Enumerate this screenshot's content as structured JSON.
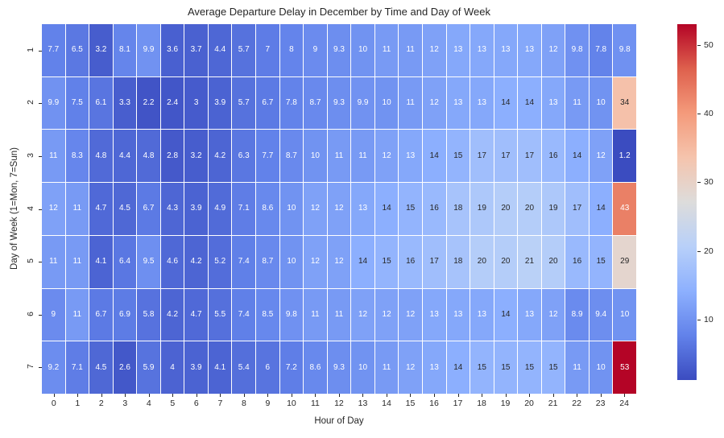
{
  "chart_data": {
    "type": "heatmap",
    "title": "Average Departure Delay in December by Time and Day of Week",
    "xlabel": "Hour of Day",
    "ylabel": "Day of Week (1=Mon, 7=Sun)",
    "x_ticks": [
      "0",
      "1",
      "2",
      "3",
      "4",
      "5",
      "6",
      "7",
      "8",
      "9",
      "10",
      "11",
      "12",
      "13",
      "14",
      "15",
      "16",
      "17",
      "18",
      "19",
      "20",
      "21",
      "22",
      "23",
      "24"
    ],
    "y_ticks": [
      "1",
      "2",
      "3",
      "4",
      "5",
      "6",
      "7"
    ],
    "rows": [
      {
        "day": "1",
        "values": [
          7.7,
          6.5,
          3.2,
          8.1,
          9.9,
          3.6,
          3.7,
          4.4,
          5.7,
          7,
          8,
          9,
          9.3,
          10,
          11,
          11,
          12,
          13,
          13,
          13,
          13,
          12,
          9.8,
          7.8,
          9.8
        ]
      },
      {
        "day": "2",
        "values": [
          9.9,
          7.5,
          6.1,
          3.3,
          2.2,
          2.4,
          3,
          3.9,
          5.7,
          6.7,
          7.8,
          8.7,
          9.3,
          9.9,
          10,
          11,
          12,
          13,
          13,
          14,
          14,
          13,
          11,
          10,
          34
        ]
      },
      {
        "day": "3",
        "values": [
          11,
          8.3,
          4.8,
          4.4,
          4.8,
          2.8,
          3.2,
          4.2,
          6.3,
          7.7,
          8.7,
          10,
          11,
          11,
          12,
          13,
          14,
          15,
          17,
          17,
          17,
          16,
          14,
          12,
          1.2
        ]
      },
      {
        "day": "4",
        "values": [
          12,
          11,
          4.7,
          4.5,
          6.7,
          4.3,
          3.9,
          4.9,
          7.1,
          8.6,
          10,
          12,
          12,
          13,
          14,
          15,
          16,
          18,
          19,
          20,
          20,
          19,
          17,
          14,
          43
        ]
      },
      {
        "day": "5",
        "values": [
          11,
          11,
          4.1,
          6.4,
          9.5,
          4.6,
          4.2,
          5.2,
          7.4,
          8.7,
          10,
          12,
          12,
          14,
          15,
          16,
          17,
          18,
          20,
          20,
          21,
          20,
          16,
          15,
          29
        ]
      },
      {
        "day": "6",
        "values": [
          9,
          11,
          6.7,
          6.9,
          5.8,
          4.2,
          4.7,
          5.5,
          7.4,
          8.5,
          9.8,
          11,
          11,
          12,
          12,
          12,
          13,
          13,
          13,
          14,
          13,
          12,
          8.9,
          9.4,
          10
        ]
      },
      {
        "day": "7",
        "values": [
          9.2,
          7.1,
          4.5,
          2.6,
          5.9,
          4,
          3.9,
          4.1,
          5.4,
          6,
          7.2,
          8.6,
          9.3,
          10,
          11,
          12,
          13,
          14,
          15,
          15,
          15,
          15,
          11,
          10,
          53
        ]
      }
    ],
    "vmin": 1.2,
    "vmax": 53,
    "colorbar_ticks": [
      "10",
      "20",
      "30",
      "40",
      "50"
    ],
    "colormap": "coolwarm",
    "colormap_stops": [
      [
        0.0,
        "#3b4cc0"
      ],
      [
        0.125,
        "#6282ea"
      ],
      [
        0.25,
        "#8db0fe"
      ],
      [
        0.375,
        "#b8d0f9"
      ],
      [
        0.5,
        "#dddcdb"
      ],
      [
        0.625,
        "#f5c4ad"
      ],
      [
        0.75,
        "#f49a7b"
      ],
      [
        0.875,
        "#de604d"
      ],
      [
        1.0,
        "#b40426"
      ]
    ],
    "legend_position": "right-colorbar",
    "grid_line_color": "#ffffff"
  },
  "colors": {
    "background": "#ffffff",
    "axis_text": "#262626",
    "annotation_dark": "#262626",
    "annotation_light": "#ffffff"
  }
}
